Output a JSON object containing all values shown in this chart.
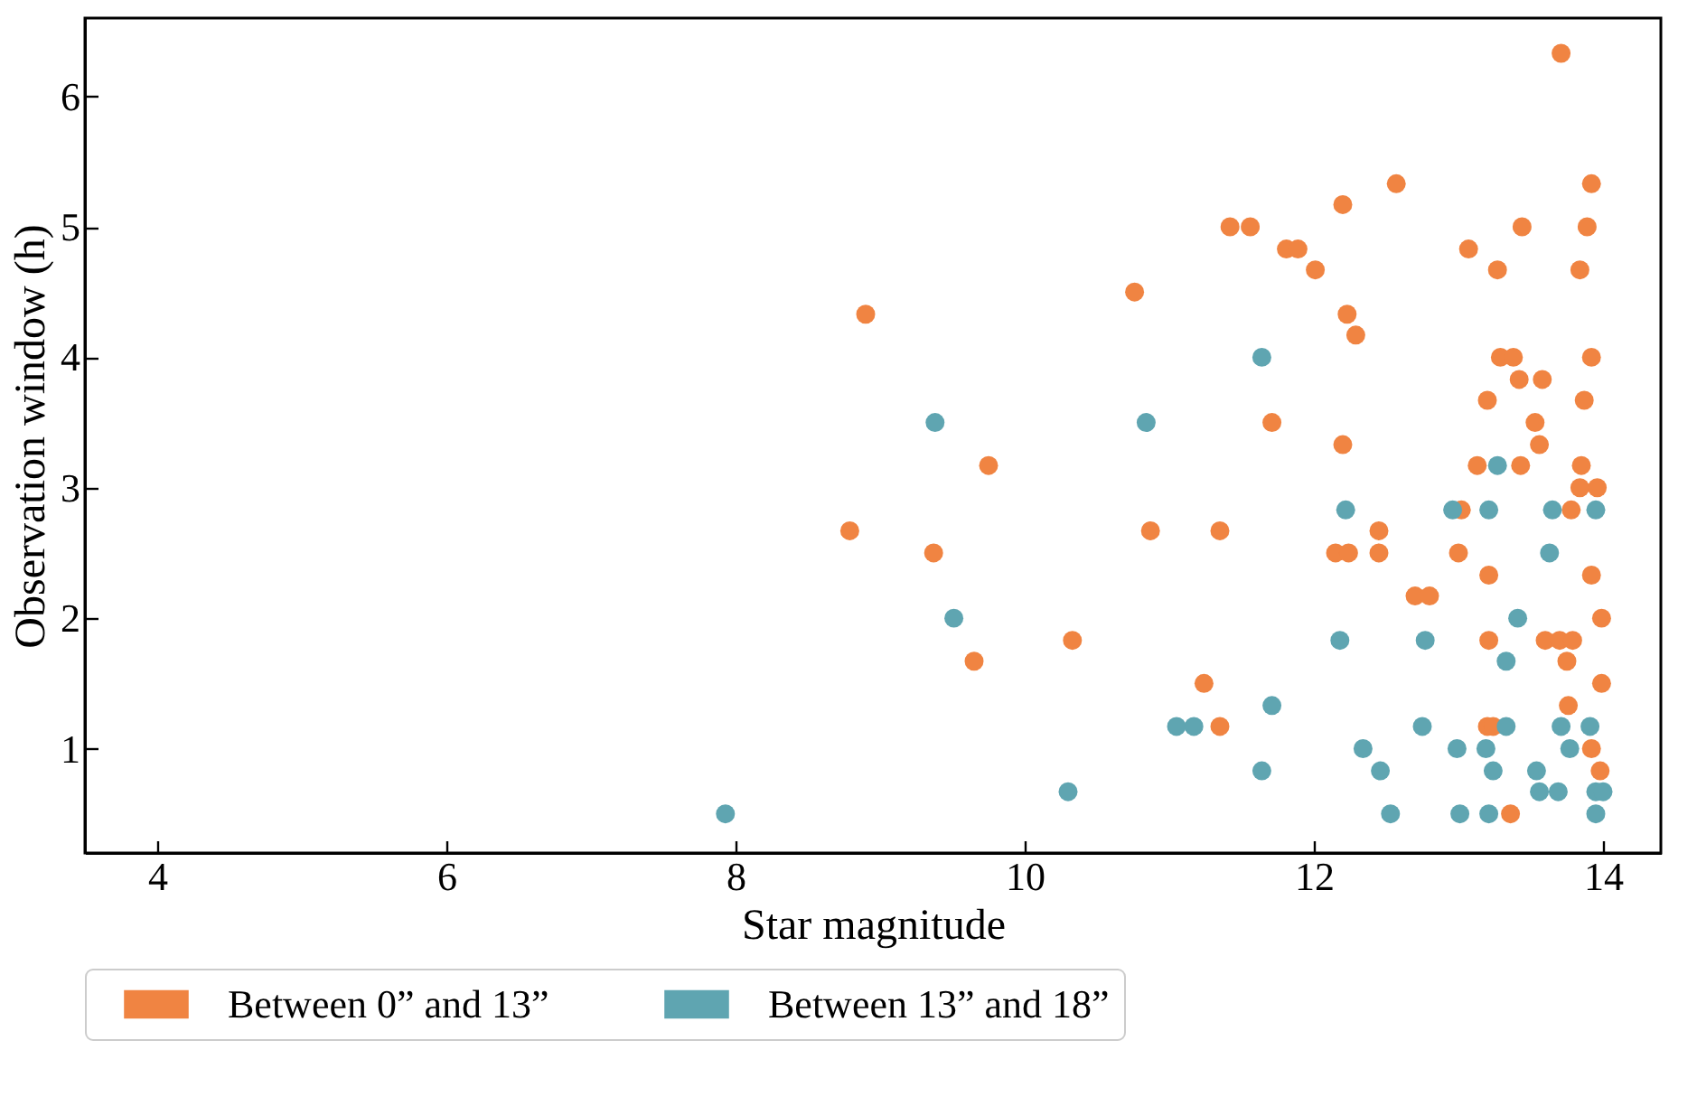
{
  "chart_data": {
    "type": "scatter",
    "xlabel": "Star magnitude",
    "ylabel": "Observation window (h)",
    "xlim": [
      3.5,
      14.4
    ],
    "ylim": [
      0.2,
      6.6
    ],
    "xticks": [
      4,
      6,
      8,
      10,
      12,
      14
    ],
    "yticks": [
      1,
      2,
      3,
      4,
      5,
      6
    ],
    "grid": false,
    "legend": "bottom",
    "marker": "circle",
    "series": [
      {
        "name": "Between 0” and 13”",
        "color": "#f08442",
        "x": [
          13.71,
          12.57,
          13.92,
          11.42,
          11.56,
          13.44,
          13.89,
          12.2,
          11.81,
          11.89,
          13.07,
          12.01,
          13.27,
          13.84,
          12.23,
          12.29,
          13.29,
          13.38,
          13.92,
          13.42,
          13.58,
          13.2,
          13.87,
          11.71,
          13.53,
          12.2,
          13.56,
          13.13,
          13.43,
          13.85,
          13.84,
          13.96,
          13.02,
          13.78,
          11.35,
          12.45,
          12.15,
          12.24,
          12.45,
          13.0,
          13.21,
          13.92,
          12.7,
          12.8,
          13.99,
          13.21,
          13.6,
          13.7,
          13.79,
          13.75,
          11.24,
          13.99,
          13.76,
          11.35,
          13.2,
          13.24,
          13.92,
          13.98,
          13.36,
          10.76,
          8.9,
          9.75,
          8.79,
          10.87,
          9.37,
          10.33,
          9.65
        ],
        "values": [
          6.33,
          5.33,
          5.33,
          5.0,
          5.0,
          5.0,
          5.0,
          5.17,
          4.83,
          4.83,
          4.83,
          4.67,
          4.67,
          4.67,
          4.33,
          4.17,
          4.0,
          4.0,
          4.0,
          3.83,
          3.83,
          3.67,
          3.67,
          3.5,
          3.5,
          3.33,
          3.33,
          3.17,
          3.17,
          3.17,
          3.0,
          3.0,
          2.83,
          2.83,
          2.67,
          2.67,
          2.5,
          2.5,
          2.5,
          2.5,
          2.33,
          2.33,
          2.17,
          2.17,
          2.0,
          1.83,
          1.83,
          1.83,
          1.83,
          1.67,
          1.5,
          1.5,
          1.33,
          1.17,
          1.17,
          1.17,
          1.0,
          0.83,
          0.5,
          4.5,
          4.33,
          3.17,
          2.67,
          2.67,
          2.5,
          1.83,
          1.67
        ]
      },
      {
        "name": "Between 13” and 18”",
        "color": "#5fa5b1",
        "x": [
          11.64,
          13.27,
          12.22,
          12.96,
          13.21,
          13.65,
          13.95,
          13.63,
          13.41,
          12.18,
          12.77,
          13.33,
          11.71,
          11.05,
          11.17,
          12.75,
          13.33,
          13.71,
          13.91,
          12.34,
          12.99,
          13.19,
          13.77,
          11.64,
          12.46,
          13.24,
          13.54,
          13.56,
          13.69,
          13.95,
          14.0,
          12.53,
          13.01,
          13.21,
          13.95,
          9.38,
          10.84,
          9.51,
          10.3,
          7.93
        ],
        "values": [
          4.0,
          3.17,
          2.83,
          2.83,
          2.83,
          2.83,
          2.83,
          2.5,
          2.0,
          1.83,
          1.83,
          1.67,
          1.33,
          1.17,
          1.17,
          1.17,
          1.17,
          1.17,
          1.17,
          1.0,
          1.0,
          1.0,
          1.0,
          0.83,
          0.83,
          0.83,
          0.83,
          0.67,
          0.67,
          0.67,
          0.67,
          0.5,
          0.5,
          0.5,
          0.5,
          3.5,
          3.5,
          2.0,
          0.67,
          0.5
        ]
      }
    ]
  }
}
